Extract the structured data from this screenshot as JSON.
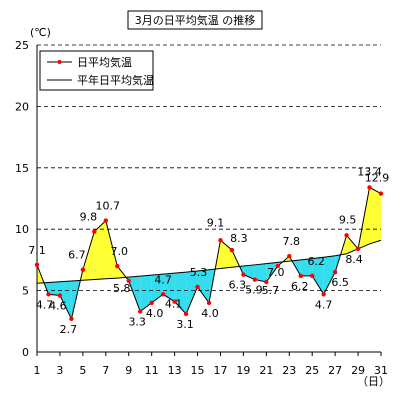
{
  "chart_data": {
    "type": "line",
    "title": "3月の日平均気温 の推移",
    "y_unit": "(℃)",
    "x_unit": "（日）",
    "ylim": [
      0,
      25
    ],
    "y_ticks": [
      0,
      5,
      10,
      15,
      20,
      25
    ],
    "x_ticks": [
      1,
      3,
      5,
      7,
      9,
      11,
      13,
      15,
      17,
      19,
      21,
      23,
      25,
      27,
      29,
      31
    ],
    "grid": "horizontal-dashed",
    "legend_position": "top-left",
    "colors": {
      "daily_line": "#000000",
      "daily_marker": "#ff0000",
      "normal_line": "#000000",
      "above_fill": "#ffff33",
      "below_fill": "#33ddee",
      "grid": "#000000"
    },
    "x": [
      1,
      2,
      3,
      4,
      5,
      6,
      7,
      8,
      9,
      10,
      11,
      12,
      13,
      14,
      15,
      16,
      17,
      18,
      19,
      20,
      21,
      22,
      23,
      24,
      25,
      26,
      27,
      28,
      29,
      30,
      31
    ],
    "series": [
      {
        "name": "日平均気温",
        "values": [
          7.1,
          4.7,
          4.6,
          2.7,
          6.7,
          9.8,
          10.7,
          7.0,
          5.8,
          3.3,
          4.0,
          4.7,
          4.1,
          3.1,
          5.3,
          4.0,
          9.1,
          8.3,
          6.3,
          5.9,
          5.7,
          7.0,
          7.8,
          6.2,
          6.2,
          4.7,
          6.5,
          9.5,
          8.4,
          13.4,
          12.9
        ]
      },
      {
        "name": "平年日平均気温",
        "values": [
          5.6,
          5.66,
          5.72,
          5.78,
          5.84,
          5.9,
          5.96,
          6.02,
          6.1,
          6.18,
          6.26,
          6.34,
          6.42,
          6.5,
          6.6,
          6.7,
          6.8,
          6.9,
          7.0,
          7.1,
          7.2,
          7.3,
          7.4,
          7.5,
          7.6,
          7.72,
          7.84,
          8.0,
          8.4,
          8.8,
          9.1
        ]
      }
    ]
  }
}
